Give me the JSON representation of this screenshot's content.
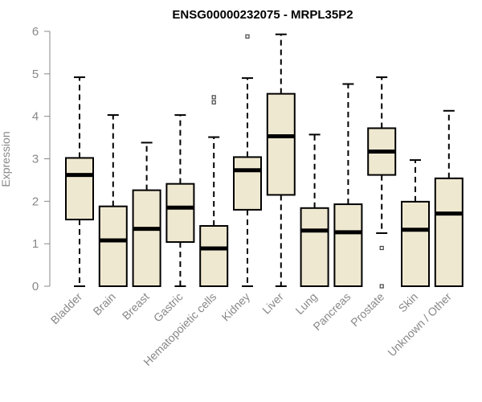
{
  "chart_data": {
    "type": "boxplot",
    "title": "ENSG00000232075 - MRPL35P2",
    "xlabel": "",
    "ylabel": "Expression",
    "ylim": [
      0,
      6
    ],
    "yticks": [
      "0",
      "1",
      "2",
      "3",
      "4",
      "5",
      "6"
    ],
    "grid": false,
    "colors": {
      "box_fill": "#efe8d0",
      "stroke": "#000000",
      "axis": "#888888",
      "outlier": "#444444"
    },
    "categories": [
      "Bladder",
      "Brain",
      "Breast",
      "Gastric",
      "Hematopoietic cells",
      "Kidney",
      "Liver",
      "Lung",
      "Pancreas",
      "Prostate",
      "Skin",
      "Unknown / Other"
    ],
    "boxes": [
      {
        "name": "Bladder",
        "whisker_low": 0,
        "q1": 1.57,
        "median": 2.62,
        "q3": 3.02,
        "whisker_high": 4.92,
        "outliers": []
      },
      {
        "name": "Brain",
        "whisker_low": 0,
        "q1": 0,
        "median": 1.08,
        "q3": 1.88,
        "whisker_high": 4.03,
        "outliers": []
      },
      {
        "name": "Breast",
        "whisker_low": 0,
        "q1": 0,
        "median": 1.35,
        "q3": 2.26,
        "whisker_high": 3.38,
        "outliers": []
      },
      {
        "name": "Gastric",
        "whisker_low": 0,
        "q1": 1.04,
        "median": 1.85,
        "q3": 2.41,
        "whisker_high": 4.03,
        "outliers": []
      },
      {
        "name": "Hematopoietic cells",
        "whisker_low": 0,
        "q1": 0,
        "median": 0.89,
        "q3": 1.42,
        "whisker_high": 3.51,
        "outliers": [
          4.33,
          4.45
        ]
      },
      {
        "name": "Kidney",
        "whisker_low": 0,
        "q1": 1.8,
        "median": 2.73,
        "q3": 3.04,
        "whisker_high": 4.9,
        "outliers": [
          5.88
        ]
      },
      {
        "name": "Liver",
        "whisker_low": 0,
        "q1": 2.15,
        "median": 3.53,
        "q3": 4.53,
        "whisker_high": 5.93,
        "outliers": []
      },
      {
        "name": "Lung",
        "whisker_low": 0,
        "q1": 0,
        "median": 1.31,
        "q3": 1.84,
        "whisker_high": 3.57,
        "outliers": []
      },
      {
        "name": "Pancreas",
        "whisker_low": 0,
        "q1": 0,
        "median": 1.27,
        "q3": 1.93,
        "whisker_high": 4.76,
        "outliers": []
      },
      {
        "name": "Prostate",
        "whisker_low": 1.25,
        "q1": 2.62,
        "median": 3.17,
        "q3": 3.72,
        "whisker_high": 4.92,
        "outliers": [
          0.9,
          0
        ]
      },
      {
        "name": "Skin",
        "whisker_low": 0,
        "q1": 0,
        "median": 1.33,
        "q3": 1.99,
        "whisker_high": 2.97,
        "outliers": []
      },
      {
        "name": "Unknown / Other",
        "whisker_low": 0,
        "q1": 0,
        "median": 1.71,
        "q3": 2.54,
        "whisker_high": 4.13,
        "outliers": []
      }
    ]
  }
}
